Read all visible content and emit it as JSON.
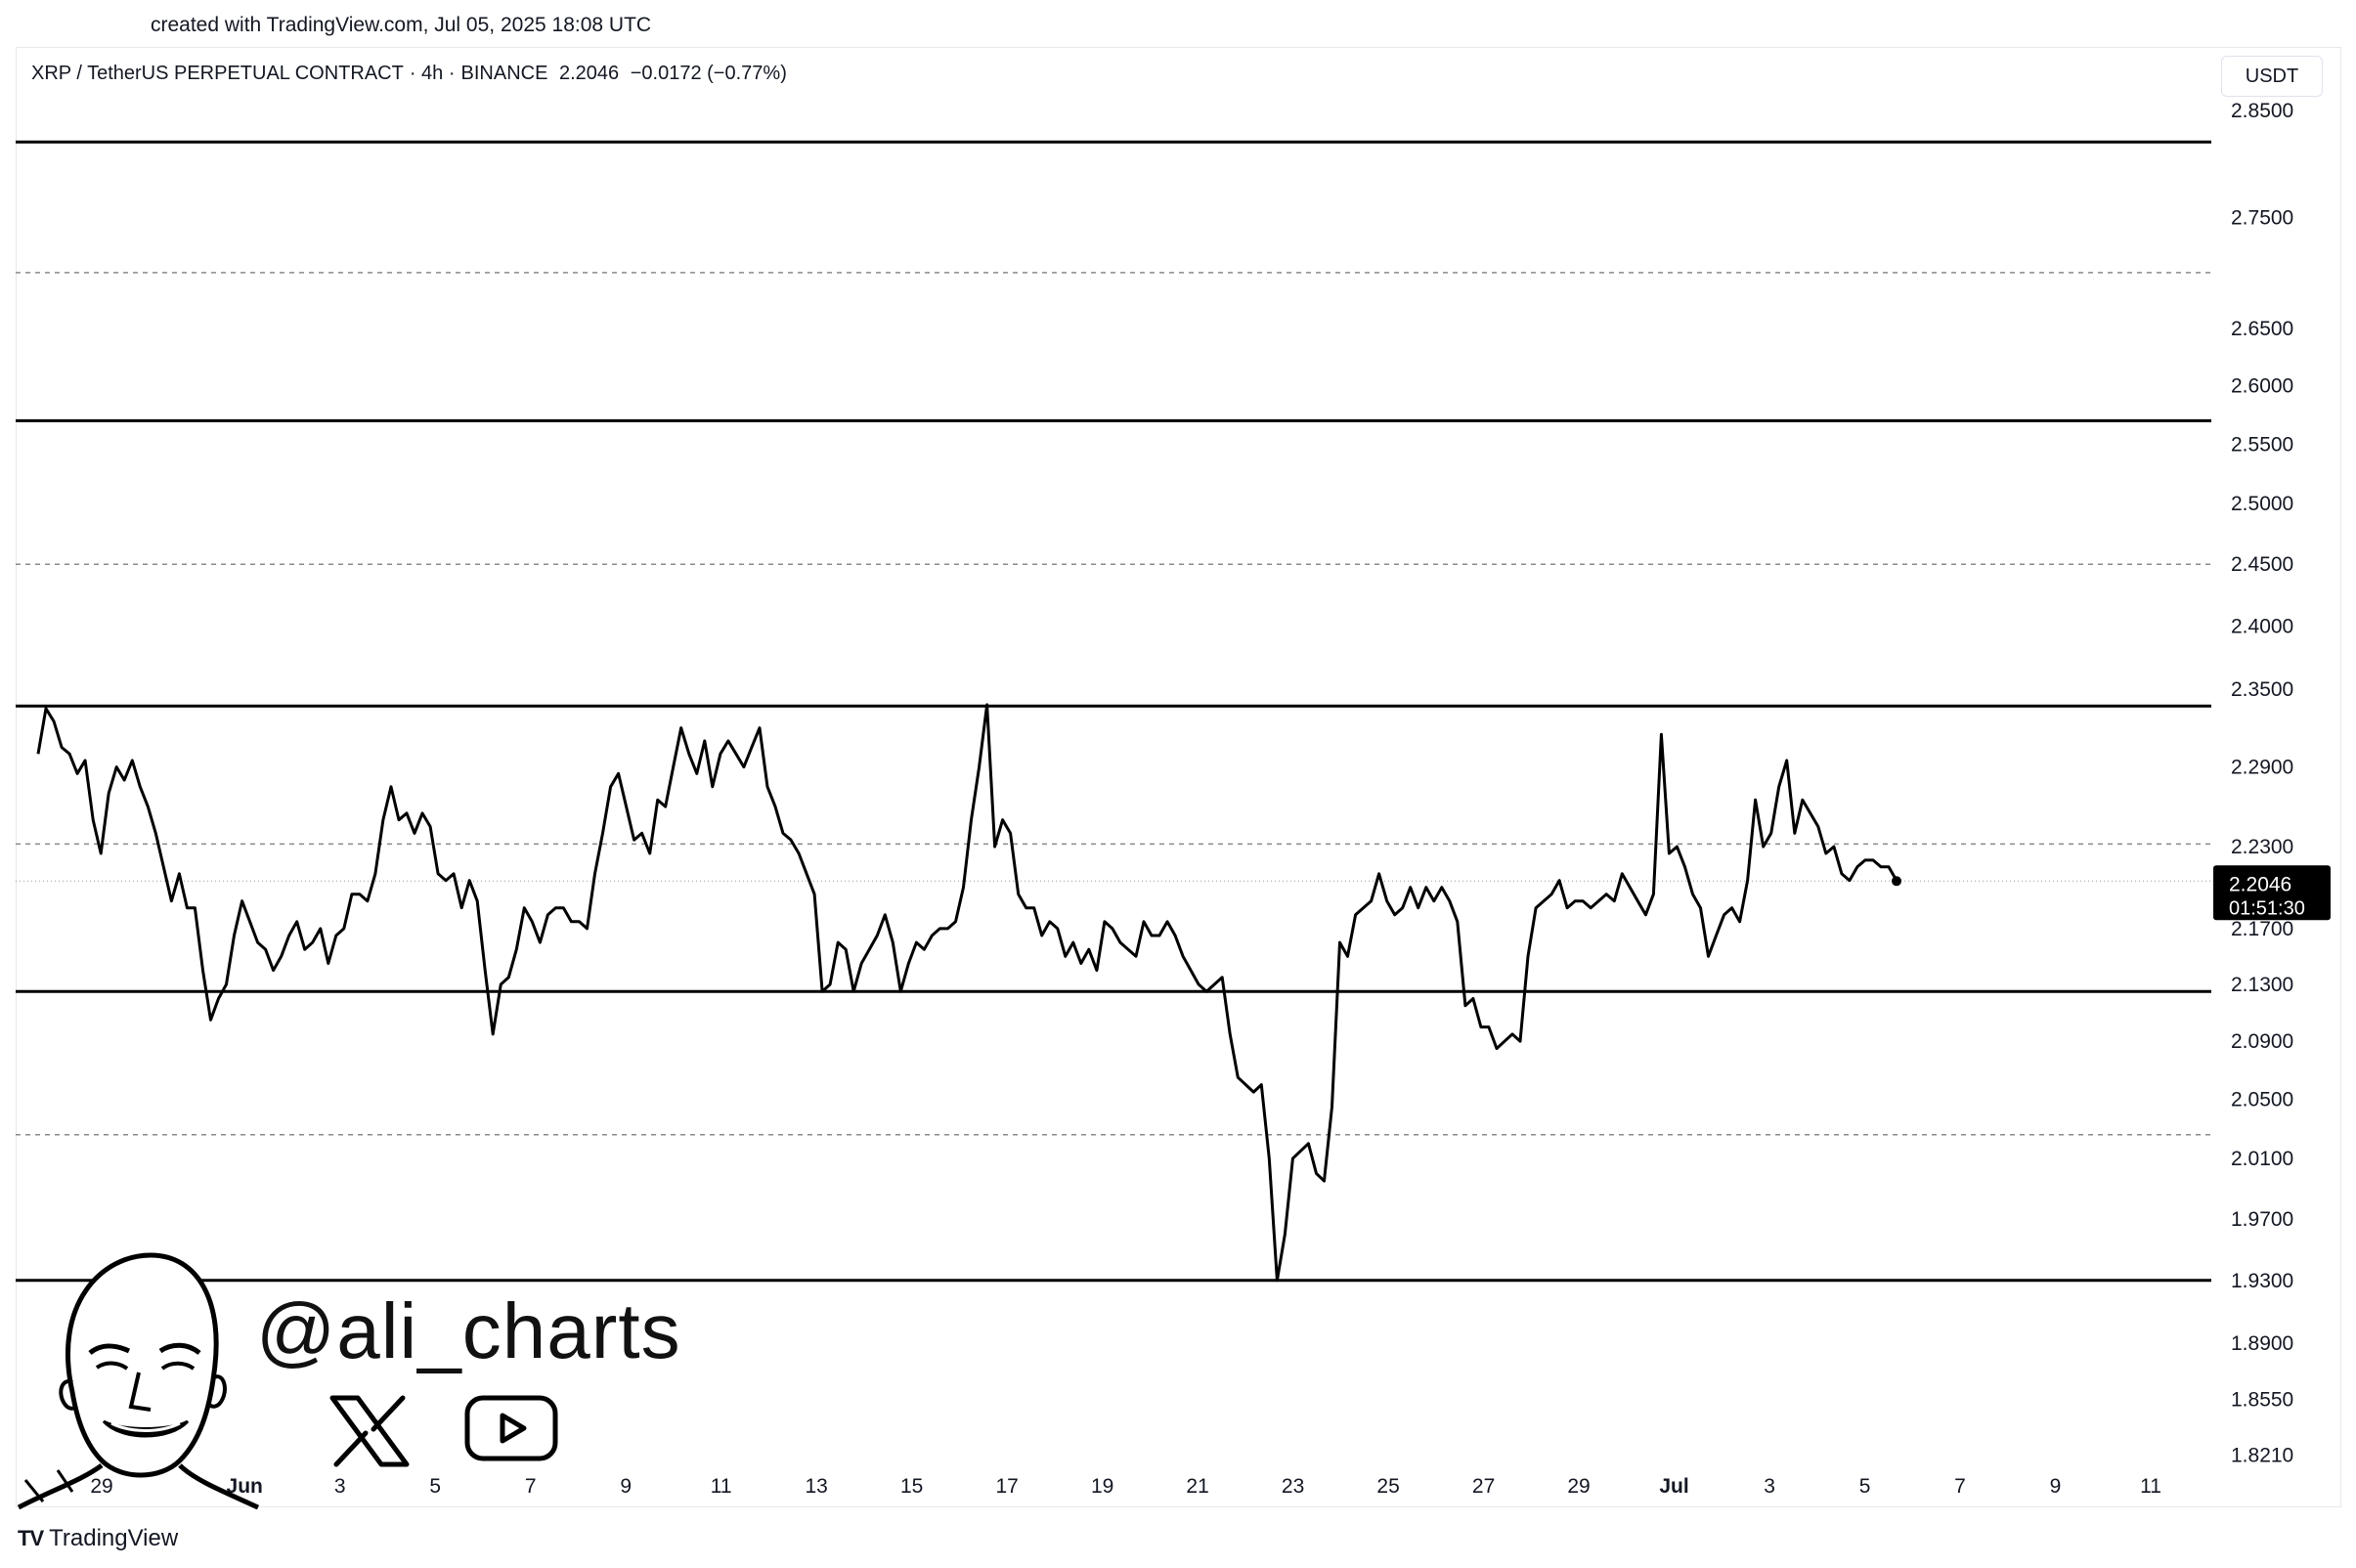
{
  "meta": {
    "created_text": "created with TradingView.com, Jul 05, 2025 18:08 UTC"
  },
  "header": {
    "symbol": "XRP / TetherUS PERPETUAL CONTRACT",
    "interval": "· 4h ·",
    "exchange": "BINANCE",
    "last_price": "2.2046",
    "change": "−0.0172 (−0.77%)",
    "currency": "USDT"
  },
  "price_label": {
    "value": "2.2046",
    "countdown": "01:51:30"
  },
  "watermark": {
    "handle": "@ali_charts",
    "icons": [
      "x-logo-icon",
      "youtube-icon",
      "caricature-avatar"
    ]
  },
  "footer": {
    "brand": "TradingView",
    "logo_text": "TV"
  },
  "colors": {
    "line": "#000000",
    "solid_level": "#000000",
    "dashed_level": "#8a8a8a",
    "price_label_bg": "#000000",
    "price_label_text": "#ffffff"
  },
  "chart_data": {
    "type": "line",
    "series": [
      {
        "values": [
          2.3,
          2.335,
          2.325,
          2.305,
          2.3,
          2.285,
          2.295,
          2.25,
          2.225,
          2.27,
          2.29,
          2.28,
          2.295,
          2.275,
          2.26,
          2.24,
          2.215,
          2.19,
          2.21,
          2.185,
          2.185,
          2.14,
          2.105,
          2.12,
          2.13,
          2.165,
          2.19,
          2.175,
          2.16,
          2.155,
          2.14,
          2.15,
          2.165,
          2.175,
          2.155,
          2.16,
          2.17,
          2.145,
          2.165,
          2.17,
          2.195,
          2.195,
          2.19,
          2.21,
          2.25,
          2.275,
          2.25,
          2.255,
          2.24,
          2.255,
          2.245,
          2.21,
          2.205,
          2.21,
          2.185,
          2.205,
          2.19,
          2.14,
          2.095,
          2.13,
          2.135,
          2.155,
          2.185,
          2.175,
          2.16,
          2.18,
          2.185,
          2.185,
          2.175,
          2.175,
          2.17,
          2.21,
          2.24,
          2.275,
          2.285,
          2.26,
          2.235,
          2.24,
          2.225,
          2.265,
          2.26,
          2.29,
          2.32,
          2.3,
          2.285,
          2.31,
          2.275,
          2.3,
          2.31,
          2.3,
          2.29,
          2.305,
          2.32,
          2.275,
          2.26,
          2.24,
          2.235,
          2.225,
          2.21,
          2.195,
          2.125,
          2.13,
          2.16,
          2.155,
          2.125,
          2.145,
          2.155,
          2.165,
          2.18,
          2.16,
          2.125,
          2.145,
          2.16,
          2.155,
          2.165,
          2.17,
          2.17,
          2.175,
          2.2,
          2.25,
          2.29,
          2.338,
          2.23,
          2.25,
          2.24,
          2.195,
          2.185,
          2.185,
          2.165,
          2.175,
          2.17,
          2.15,
          2.16,
          2.145,
          2.155,
          2.14,
          2.175,
          2.17,
          2.16,
          2.155,
          2.15,
          2.175,
          2.165,
          2.165,
          2.175,
          2.165,
          2.15,
          2.14,
          2.13,
          2.125,
          2.13,
          2.135,
          2.095,
          2.065,
          2.06,
          2.055,
          2.06,
          2.01,
          1.93,
          1.96,
          2.01,
          2.015,
          2.02,
          2.0,
          1.995,
          2.045,
          2.16,
          2.15,
          2.18,
          2.185,
          2.19,
          2.21,
          2.19,
          2.18,
          2.185,
          2.2,
          2.185,
          2.2,
          2.19,
          2.2,
          2.19,
          2.175,
          2.115,
          2.12,
          2.1,
          2.1,
          2.085,
          2.09,
          2.095,
          2.09,
          2.15,
          2.185,
          2.19,
          2.195,
          2.205,
          2.185,
          2.19,
          2.19,
          2.185,
          2.19,
          2.195,
          2.19,
          2.21,
          2.2,
          2.19,
          2.18,
          2.195,
          2.315,
          2.225,
          2.23,
          2.215,
          2.195,
          2.185,
          2.15,
          2.165,
          2.18,
          2.185,
          2.175,
          2.205,
          2.265,
          2.23,
          2.24,
          2.275,
          2.295,
          2.24,
          2.265,
          2.255,
          2.245,
          2.225,
          2.23,
          2.21,
          2.205,
          2.215,
          2.22,
          2.22,
          2.215,
          2.215,
          2.205
        ]
      }
    ],
    "last_value": 2.2046,
    "x_axis": {
      "ticks": [
        "29",
        "Jun",
        "3",
        "5",
        "7",
        "9",
        "11",
        "13",
        "15",
        "17",
        "19",
        "21",
        "23",
        "25",
        "27",
        "29",
        "Jul",
        "3",
        "5",
        "7",
        "9",
        "11"
      ],
      "bold_ticks": [
        "Jun",
        "Jul"
      ],
      "tick_dates": [
        "2025-05-29",
        "2025-06-01",
        "2025-06-03",
        "2025-06-05",
        "2025-06-07",
        "2025-06-09",
        "2025-06-11",
        "2025-06-13",
        "2025-06-15",
        "2025-06-17",
        "2025-06-19",
        "2025-06-21",
        "2025-06-23",
        "2025-06-25",
        "2025-06-27",
        "2025-06-29",
        "2025-07-01",
        "2025-07-03",
        "2025-07-05",
        "2025-07-07",
        "2025-07-09",
        "2025-07-11"
      ]
    },
    "y_axis": {
      "ticks": [
        "2.8500",
        "2.7500",
        "2.6500",
        "2.6000",
        "2.5500",
        "2.5000",
        "2.4500",
        "2.4000",
        "2.3500",
        "2.2900",
        "2.2300",
        "2.1700",
        "2.1300",
        "2.0900",
        "2.0500",
        "2.0100",
        "1.9700",
        "1.9300",
        "1.8900",
        "1.8550",
        "1.8210"
      ],
      "scale": "log",
      "range": [
        1.82,
        2.89
      ]
    },
    "levels": [
      {
        "price": 2.82,
        "style": "solid"
      },
      {
        "price": 2.7,
        "style": "dashed"
      },
      {
        "price": 2.57,
        "style": "solid"
      },
      {
        "price": 2.45,
        "style": "dashed"
      },
      {
        "price": 2.337,
        "style": "solid"
      },
      {
        "price": 2.232,
        "style": "dashed"
      },
      {
        "price": 2.125,
        "style": "solid"
      },
      {
        "price": 2.026,
        "style": "dashed"
      },
      {
        "price": 1.93,
        "style": "solid"
      }
    ],
    "grid": false,
    "legend": "none"
  }
}
